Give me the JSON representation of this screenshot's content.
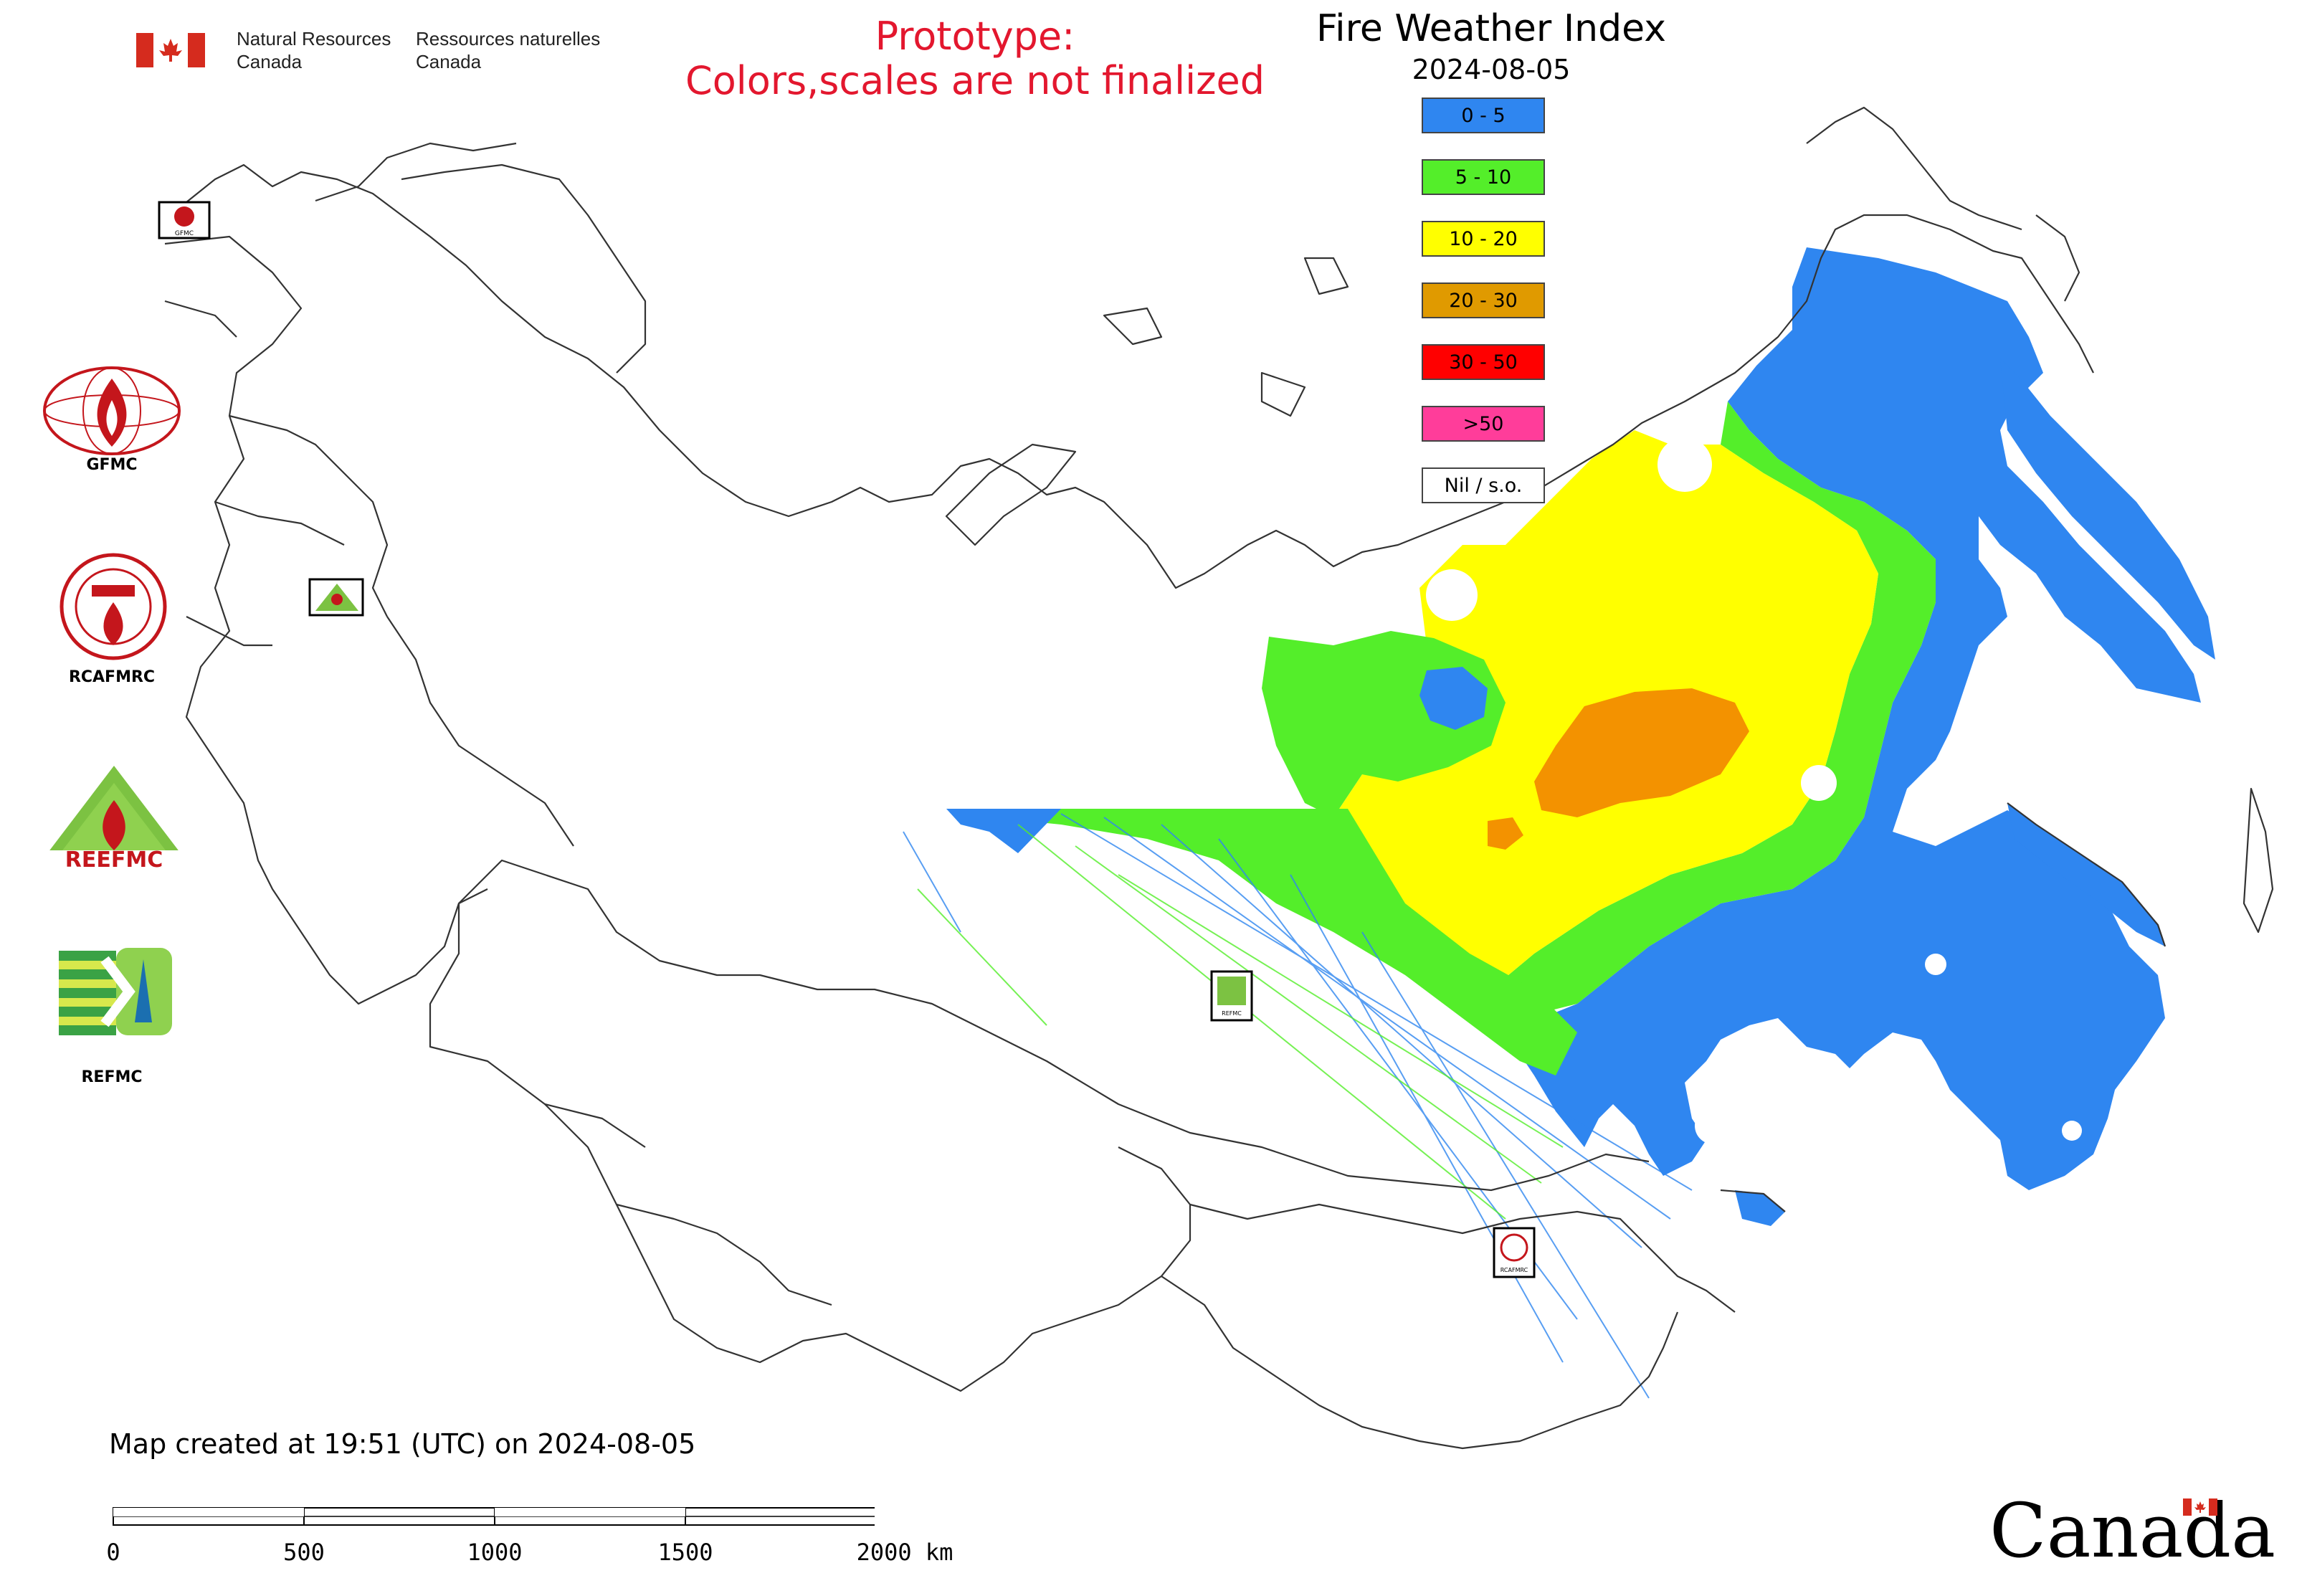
{
  "header": {
    "agency_en": "Natural Resources\nCanada",
    "agency_fr": "Ressources naturelles\nCanada",
    "prototype_line1": "Prototype:",
    "prototype_line2": "Colors,scales are not finalized",
    "title": "Fire Weather Index",
    "date": "2024-08-05"
  },
  "legend": [
    {
      "label": "0 - 5",
      "color": "#2f86f0"
    },
    {
      "label": "5 - 10",
      "color": "#54ee2a"
    },
    {
      "label": "10 - 20",
      "color": "#ffff00"
    },
    {
      "label": "20 - 30",
      "color": "#e09a00"
    },
    {
      "label": "30 - 50",
      "color": "#ff0000"
    },
    {
      "label": ">50",
      "color": "#ff3d9a"
    },
    {
      "label": "Nil / s.o.",
      "color": "#ffffff"
    }
  ],
  "map_markers": [
    {
      "name": "GFMC",
      "icon": "gfmc-logo"
    },
    {
      "name": "REEFMC",
      "icon": "reefmc-logo"
    },
    {
      "name": "REFMC",
      "icon": "refmc-logo"
    },
    {
      "name": "RCAFMRC",
      "icon": "rcafmrc-logo"
    }
  ],
  "side_logos": [
    {
      "label": "GFMC",
      "icon": "gfmc-logo"
    },
    {
      "label": "RCAFMRC",
      "icon": "rcafmrc-logo"
    },
    {
      "label": "",
      "icon": "reefmc-logo",
      "logo_text": "REEFMC"
    },
    {
      "label": "REFMC",
      "icon": "refmc-logo"
    }
  ],
  "footer": {
    "created": "Map created at 19:51 (UTC) on 2024-08-05",
    "scale_labels": [
      "0",
      "500",
      "1000",
      "1500",
      "2000 km"
    ],
    "wordmark": "Canada"
  },
  "colors": {
    "flag_red": "#d52b1e",
    "prototype_red": "#e3172e",
    "border": "#333333"
  }
}
